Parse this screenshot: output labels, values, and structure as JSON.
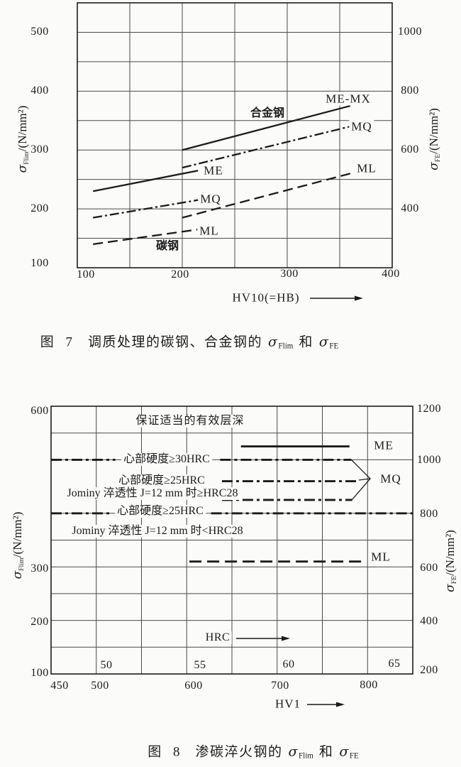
{
  "page": {
    "bg": "#fbfbfa",
    "ink": "#1b1b1b",
    "grid": "#4a4a4a"
  },
  "fig7": {
    "caption": {
      "fig_label": "图 7",
      "title": "调质处理的碳钢、合金钢的",
      "sigma": "σ",
      "sub_left": "Flim",
      "and_word": "和",
      "sub_right": "FE"
    },
    "x_axis": {
      "title": "HV10(=HB)",
      "ticks": [
        "100",
        "200",
        "300",
        "400"
      ]
    },
    "y_left": {
      "sigma": "σ",
      "sub": "Flim",
      "unit": "/(N/mm²)",
      "ticks": [
        "500",
        "400",
        "300",
        "200",
        "100"
      ]
    },
    "y_right": {
      "sigma": "σ",
      "sub": "FE",
      "unit": "/(N/mm²)",
      "ticks": [
        "1000",
        "800",
        "600",
        "400"
      ]
    },
    "group_labels": {
      "alloy": "合金钢",
      "carbon": "碳钢"
    },
    "series_labels": {
      "alloy_me_mx": "ME-MX",
      "alloy_mq": "MQ",
      "alloy_ml": "ML",
      "carbon_me": "ME",
      "carbon_mq": "MQ",
      "carbon_ml": "ML"
    }
  },
  "fig8": {
    "caption": {
      "fig_label": "图 8",
      "title": "渗碳淬火钢的",
      "sigma": "σ",
      "sub_left": "Flim",
      "and_word": "和",
      "sub_right": "FE"
    },
    "x_axis": {
      "title": "HV1",
      "ticks": [
        "450",
        "500",
        "600",
        "700",
        "800"
      ]
    },
    "hrc_axis": {
      "label": "HRC",
      "ticks": [
        "50",
        "55",
        "60",
        "65"
      ]
    },
    "y_left": {
      "sigma": "σ",
      "sub": "Flim",
      "unit": "/(N/mm²)",
      "ticks": [
        "600",
        "300",
        "200",
        "100"
      ]
    },
    "y_right": {
      "sigma": "σ",
      "sub": "FE",
      "unit": "/(N/mm²)",
      "ticks": [
        "1200",
        "1000",
        "800",
        "600",
        "400",
        "200"
      ]
    },
    "header_note": "保证适当的有效层深",
    "condition_labels": {
      "mq_30hrc": "心部硬度≥30HRC",
      "mq_25hrc_a": "心部硬度≥25HRC",
      "jominy_ge": "Jominy 淬透性 J=12 mm 时≥HRC28",
      "mq_25hrc_b": "心部硬度≥25HRC",
      "jominy_lt": "Jominy 淬透性 J=12 mm 时<HRC28"
    },
    "series_labels": {
      "me": "ME",
      "mq": "MQ",
      "ml": "ML"
    }
  },
  "chart_data": [
    {
      "type": "line",
      "title": "图7 调质处理的碳钢、合金钢的 σFlim 和 σFE",
      "xlabel": "HV10(=HB)",
      "ylabel_left": "σFlim/(N/mm²)",
      "ylabel_right": "σFE/(N/mm²)",
      "xlim": [
        100,
        400
      ],
      "ylim_left": [
        100,
        550
      ],
      "ylim_right": [
        200,
        1100
      ],
      "x_ticks": [
        100,
        200,
        300,
        400
      ],
      "y_ticks_left": [
        100,
        200,
        300,
        400,
        500
      ],
      "y_ticks_right": [
        400,
        600,
        800,
        1000
      ],
      "grid": "50-unit grid, both axes",
      "note": "right axis sigmaFE = 2 x sigmaFlim",
      "series": [
        {
          "name": "合金钢 ME-MX",
          "style": "solid",
          "points": [
            [
              200,
              300
            ],
            [
              360,
              375
            ]
          ]
        },
        {
          "name": "合金钢 MQ",
          "style": "dashdot",
          "points": [
            [
              200,
              270
            ],
            [
              360,
              340
            ]
          ]
        },
        {
          "name": "合金钢 ML",
          "style": "dash",
          "points": [
            [
              200,
              185
            ],
            [
              360,
              260
            ]
          ]
        },
        {
          "name": "碳钢 ME",
          "style": "solid",
          "points": [
            [
              115,
              230
            ],
            [
              215,
              265
            ]
          ]
        },
        {
          "name": "碳钢 MQ",
          "style": "dashdot",
          "points": [
            [
              115,
              185
            ],
            [
              215,
              215
            ]
          ]
        },
        {
          "name": "碳钢 ML",
          "style": "dash",
          "points": [
            [
              115,
              140
            ],
            [
              215,
              165
            ]
          ]
        }
      ]
    },
    {
      "type": "line",
      "title": "图8 渗碳淬火钢的 σFlim 和 σFE",
      "xlabel": "HV1",
      "ylabel_left": "σFlim/(N/mm²)",
      "ylabel_right": "σFE/(N/mm²)",
      "xlim": [
        450,
        850
      ],
      "ylim_left": [
        100,
        600
      ],
      "ylim_right": [
        200,
        1200
      ],
      "x_ticks": [
        450,
        500,
        600,
        700,
        800
      ],
      "hrc_ticks": [
        50,
        55,
        60,
        65
      ],
      "y_ticks_left": [
        100,
        200,
        300,
        600
      ],
      "y_ticks_right": [
        200,
        400,
        600,
        800,
        1000,
        1200
      ],
      "grid": "50-unit grid, both axes (450 line omitted in label zone)",
      "series": [
        {
          "name": "ME",
          "sigma_flim": 525,
          "sigma_fe": 1050,
          "style": "solid",
          "y": 525,
          "segments": [
            [
              660,
              780
            ]
          ]
        },
        {
          "name": "MQ 心部硬度≥30HRC",
          "sigma_flim": 500,
          "sigma_fe": 1000,
          "style": "dashdot",
          "y": 500,
          "segments": [
            [
              450,
              521
            ],
            [
              637,
              782
            ]
          ]
        },
        {
          "name": "MQ 心部硬度≥25HRC Jominy淬透性J=12mm时≥HRC28",
          "sigma_flim": 460,
          "sigma_fe": 920,
          "style": "dashdot",
          "y": 460,
          "segments": [
            [
              639,
              790
            ]
          ]
        },
        {
          "name": "MQ",
          "sigma_flim": 425,
          "sigma_fe": 850,
          "style": "dashdot",
          "y": 425,
          "segments": [
            [
              639,
              783
            ]
          ]
        },
        {
          "name": "心部硬度≥25HRC Jominy淬透性J=12mm时<HRC28",
          "sigma_flim": 400,
          "sigma_fe": 800,
          "style": "dashdot",
          "y": 400,
          "segments": [
            [
              450,
              517
            ],
            [
              627,
              850
            ]
          ]
        },
        {
          "name": "ML",
          "sigma_flim": 310,
          "sigma_fe": 620,
          "style": "dash",
          "y": 310,
          "segments": [
            [
              603,
              799
            ]
          ]
        }
      ]
    }
  ]
}
